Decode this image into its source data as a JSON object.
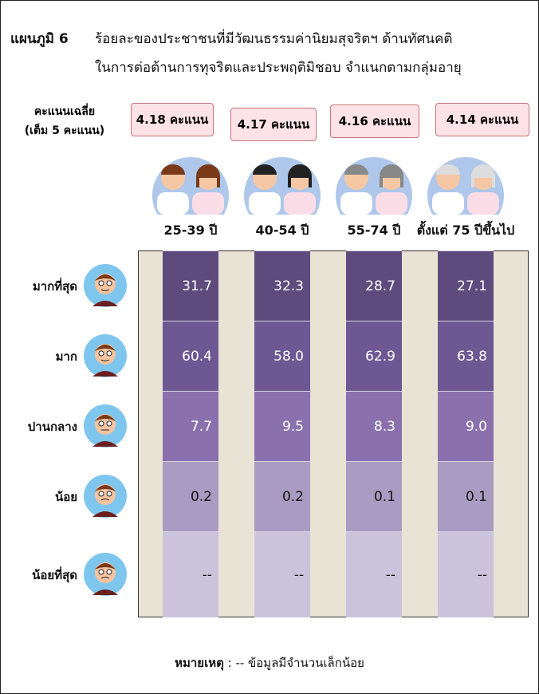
{
  "header": {
    "label": "แผนภูมิ 6",
    "line1": "ร้อยละของประชาชนที่มีวัฒนธรรมค่านิยมสุจริตฯ ด้านทัศนคติ",
    "line2": "ในการต่อต้านการทุจริตและประพฤติมิชอบ  จำแนกตามกลุ่มอายุ"
  },
  "score_header": {
    "line1": "คะแนนเฉลี่ย",
    "line2": "(เต็ม 5 คะแนน)"
  },
  "groups": [
    {
      "label": "25-39 ปี",
      "score": "4.18 คะแนน"
    },
    {
      "label": "40-54 ปี",
      "score": "4.17 คะแนน"
    },
    {
      "label": "55-74 ปี",
      "score": "4.16 คะแนน"
    },
    {
      "label": "ตั้งแต่ 75 ปีขึ้นไป",
      "score": "4.14 คะแนน"
    }
  ],
  "levels": [
    "มากที่สุด",
    "มาก",
    "ปานกลาง",
    "น้อย",
    "น้อยที่สุด"
  ],
  "table": {
    "rows": [
      [
        "31.7",
        "32.3",
        "28.7",
        "27.1"
      ],
      [
        "60.4",
        "58.0",
        "62.9",
        "63.8"
      ],
      [
        "7.7",
        "9.5",
        "8.3",
        "9.0"
      ],
      [
        "0.2",
        "0.2",
        "0.1",
        "0.1"
      ],
      [
        "--",
        "--",
        "--",
        "--"
      ]
    ]
  },
  "note": {
    "label": "หมายเหตุ",
    "text": " : -- ข้อมูลมีจำนวนเล็กน้อย"
  }
}
